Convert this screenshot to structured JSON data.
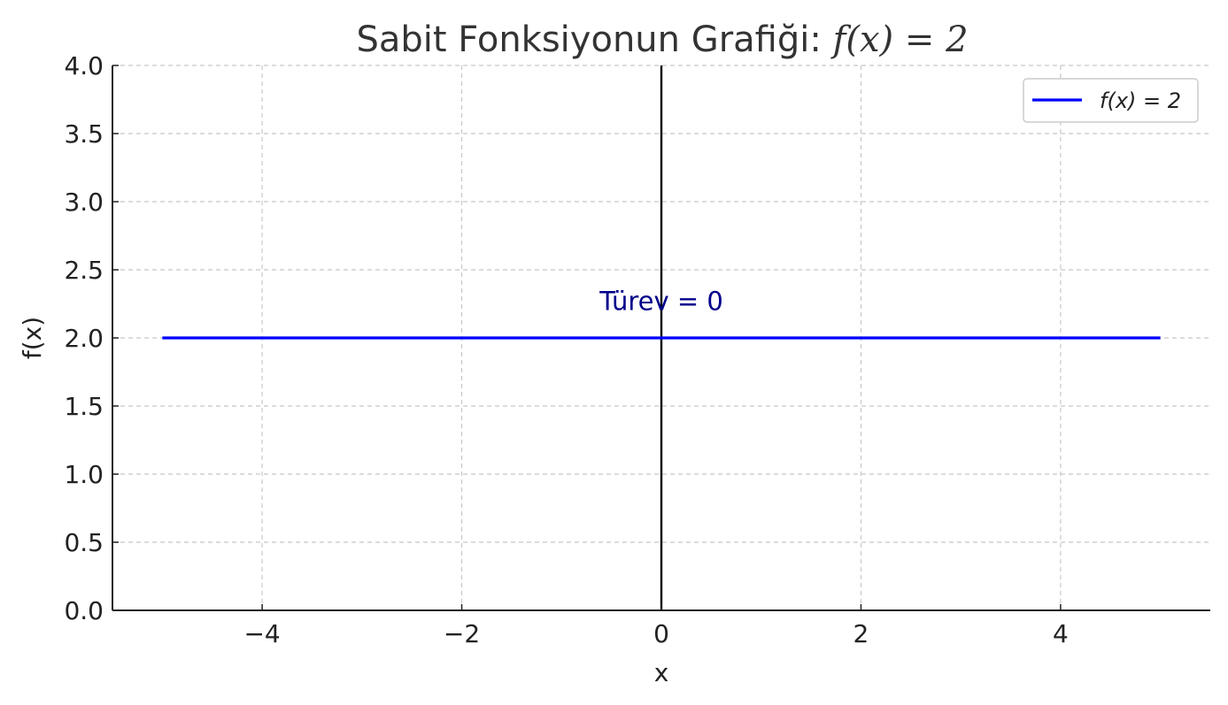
{
  "chart_data": {
    "type": "line",
    "title": "Sabit Fonksiyonun Grafiği: f(x) = 2",
    "title_prefix": "Sabit Fonksiyonun Grafiği: ",
    "title_math": "f(x) = 2",
    "xlabel": "x",
    "ylabel": "f(x)",
    "xlim": [
      -5.5,
      5.5
    ],
    "ylim": [
      0,
      4
    ],
    "xticks": [
      -4,
      -2,
      0,
      2,
      4
    ],
    "xtick_labels": [
      "−4",
      "−2",
      "0",
      "2",
      "4"
    ],
    "yticks": [
      0,
      0.5,
      1,
      1.5,
      2,
      2.5,
      3,
      3.5,
      4
    ],
    "ytick_labels": [
      "0.0",
      "0.5",
      "1.0",
      "1.5",
      "2.0",
      "2.5",
      "3.0",
      "3.5",
      "4.0"
    ],
    "grid": true,
    "legend_position": "top-right",
    "series": [
      {
        "name": "f(x) = 2",
        "x": [
          -5,
          5
        ],
        "y": [
          2,
          2
        ],
        "color": "#0000ff"
      }
    ],
    "reference_lines": [
      {
        "type": "vertical",
        "x": 0,
        "color": "#000000"
      }
    ],
    "annotations": [
      {
        "text": "Türev = 0",
        "x": 0,
        "y": 2.27,
        "color": "#00008b"
      }
    ]
  }
}
